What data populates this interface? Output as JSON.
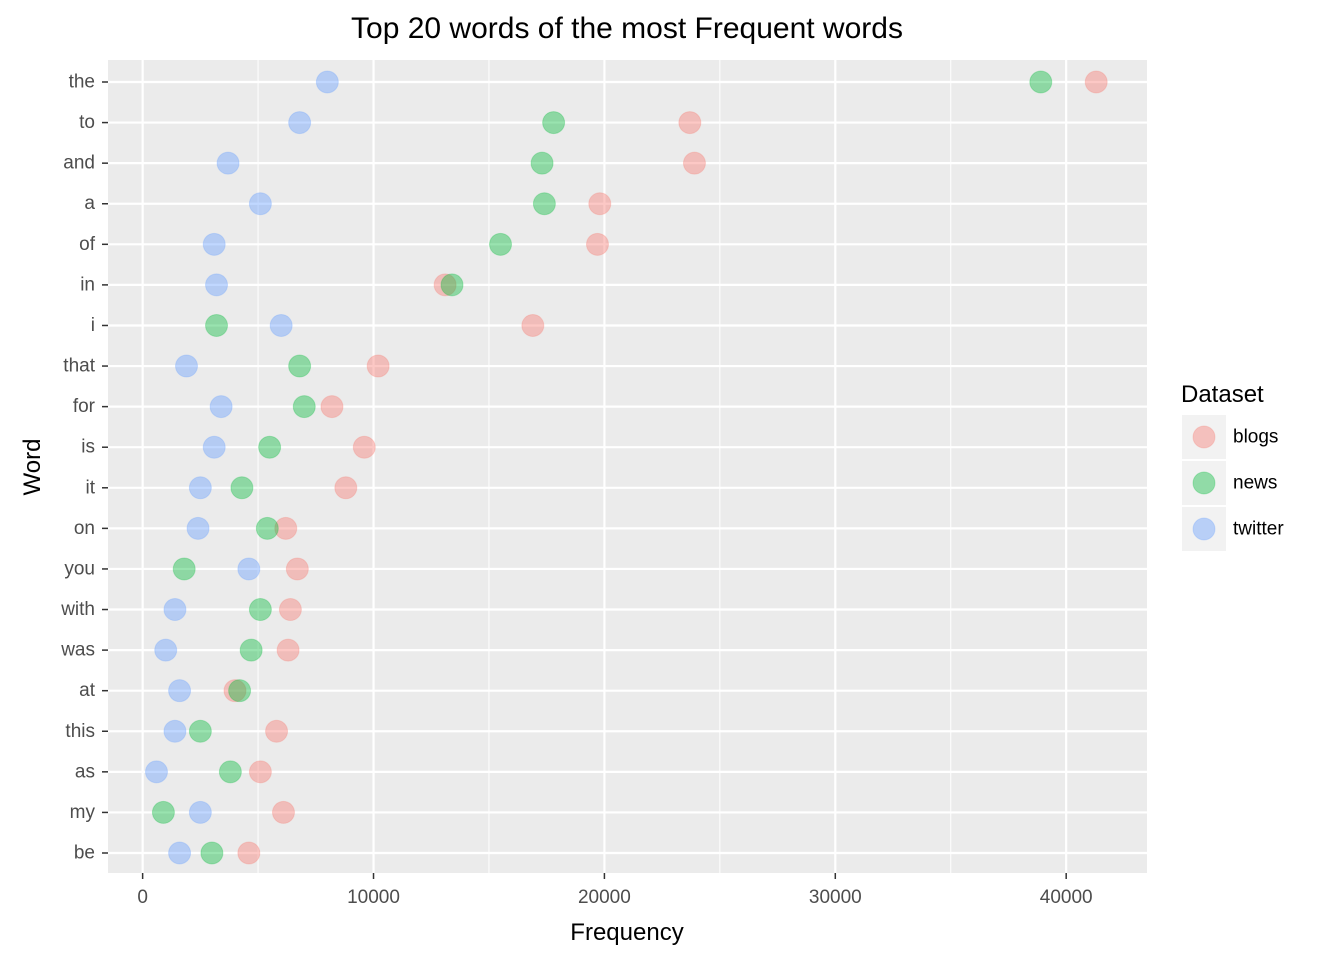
{
  "chart_data": {
    "type": "scatter",
    "title": "Top 20 words of the most Frequent words",
    "xlabel": "Frequency",
    "ylabel": "Word",
    "xlim": [
      -1500,
      43500
    ],
    "x_ticks": [
      0,
      10000,
      20000,
      30000,
      40000
    ],
    "x_tick_labels": [
      "0",
      "10000",
      "20000",
      "30000",
      "40000"
    ],
    "categories": [
      "the",
      "to",
      "and",
      "a",
      "of",
      "in",
      "i",
      "that",
      "for",
      "is",
      "it",
      "on",
      "you",
      "with",
      "was",
      "at",
      "this",
      "as",
      "my",
      "be"
    ],
    "grid": true,
    "legend": {
      "title": "Dataset",
      "position": "right"
    },
    "series": [
      {
        "name": "blogs",
        "color": "#F8766D",
        "values": [
          41300,
          23700,
          23900,
          19800,
          19700,
          13100,
          16900,
          10200,
          8200,
          9600,
          8800,
          6200,
          6700,
          6400,
          6300,
          4000,
          5800,
          5100,
          6100,
          4600
        ]
      },
      {
        "name": "news",
        "color": "#00BA38",
        "values": [
          38900,
          17800,
          17300,
          17400,
          15500,
          13400,
          3200,
          6800,
          7000,
          5500,
          4300,
          5400,
          1800,
          5100,
          4700,
          4200,
          2500,
          3800,
          900,
          3000
        ]
      },
      {
        "name": "twitter",
        "color": "#619CFF",
        "values": [
          8000,
          6800,
          3700,
          5100,
          3100,
          3200,
          6000,
          1900,
          3400,
          3100,
          2500,
          2400,
          4600,
          1400,
          1000,
          1600,
          1400,
          600,
          2500,
          1600
        ]
      }
    ]
  }
}
